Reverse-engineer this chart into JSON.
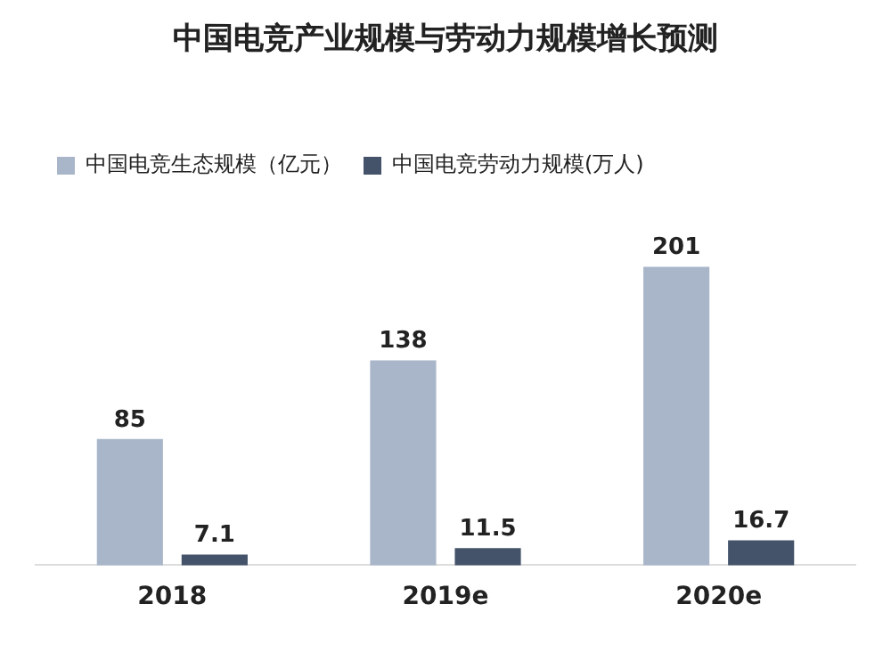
{
  "chart_data": {
    "type": "bar",
    "title": "中国电竞产业规模与劳动力规模增长预测",
    "categories": [
      "2018",
      "2019e",
      "2020e"
    ],
    "series": [
      {
        "name": "中国电竞生态规模（亿元）",
        "color": "#a9b6c9",
        "values": [
          85,
          138,
          201
        ]
      },
      {
        "name": "中国电竞劳动力规模(万人)",
        "color": "#44536a",
        "values": [
          7.1,
          11.5,
          16.7
        ]
      }
    ],
    "data_labels": true,
    "legend": "top left",
    "grid": false
  }
}
